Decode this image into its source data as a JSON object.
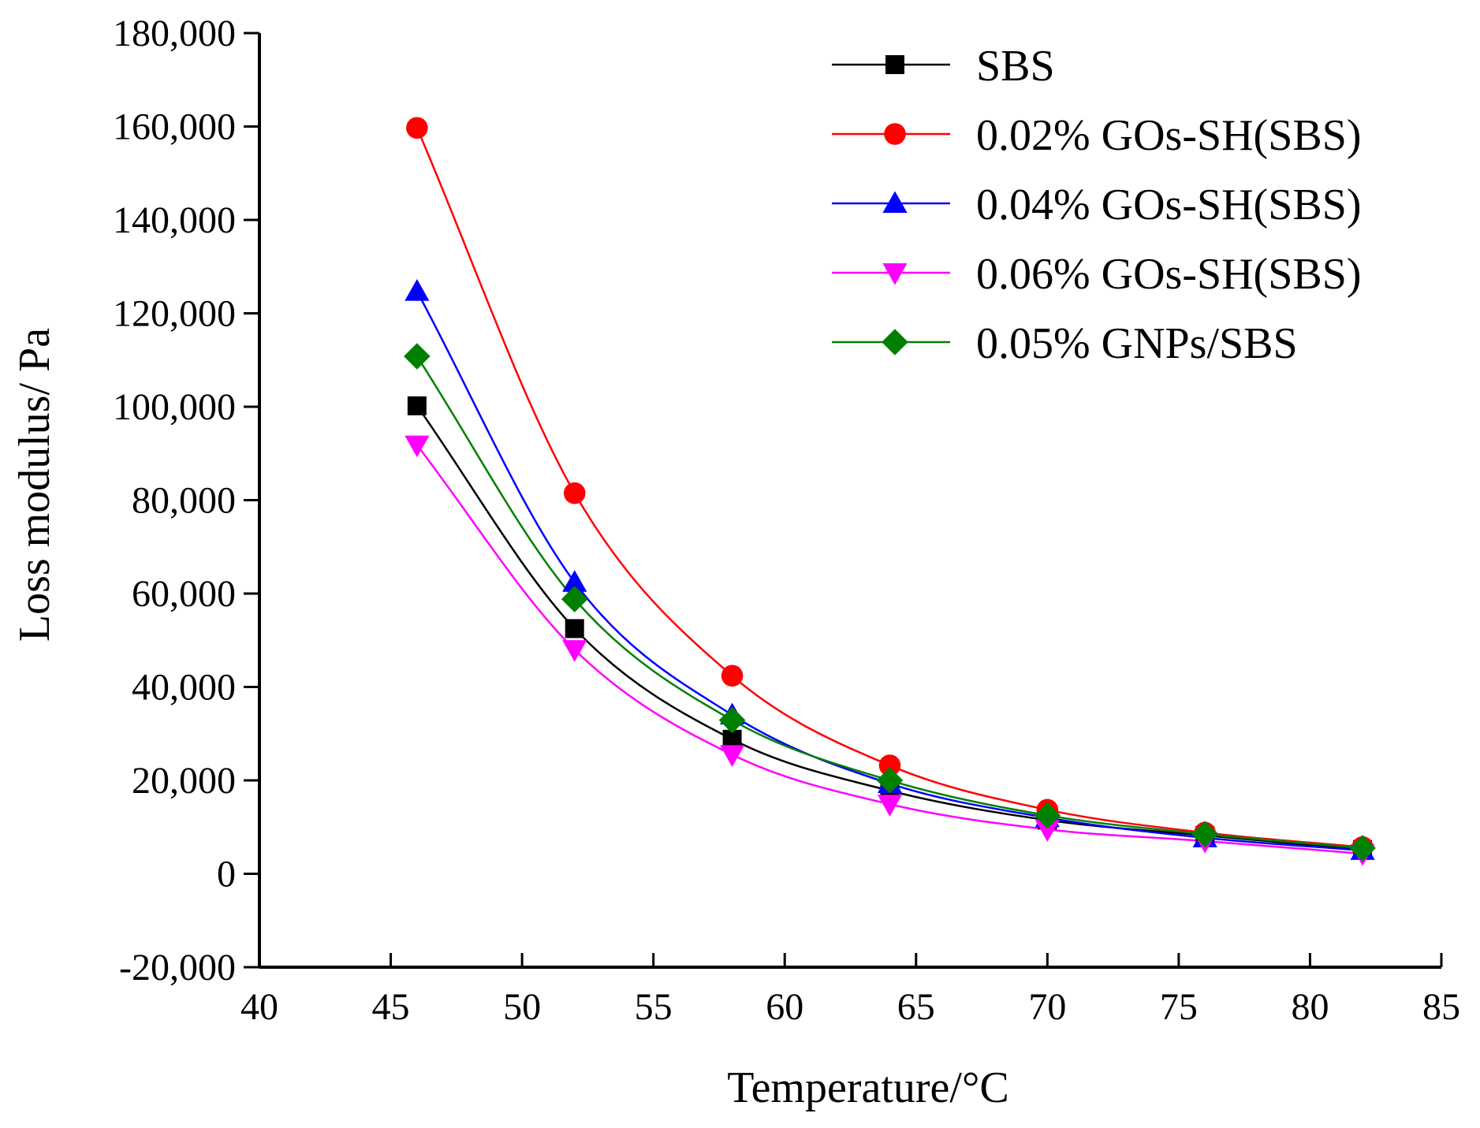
{
  "chart_data": {
    "type": "line",
    "title": "",
    "xlabel": "Temperature/°C",
    "ylabel": "Loss modulus/ Pa",
    "xlim": [
      40,
      85
    ],
    "ylim": [
      -20000,
      180000
    ],
    "x_ticks": [
      40,
      45,
      50,
      55,
      60,
      65,
      70,
      75,
      80,
      85
    ],
    "y_ticks": [
      -20000,
      0,
      20000,
      40000,
      60000,
      80000,
      100000,
      120000,
      140000,
      160000,
      180000
    ],
    "x_tick_labels": [
      "40",
      "45",
      "50",
      "55",
      "60",
      "65",
      "70",
      "75",
      "80",
      "85"
    ],
    "y_tick_labels": [
      "-20,000",
      "0",
      "20,000",
      "40,000",
      "60,000",
      "80,000",
      "100,000",
      "120,000",
      "140,000",
      "160,000",
      "180,000"
    ],
    "legend_position": "top-right",
    "grid": false,
    "x": [
      46,
      52,
      58,
      64,
      70,
      76,
      82
    ],
    "series": [
      {
        "name": "SBS",
        "color": "#000000",
        "marker": "square",
        "values": [
          100200,
          52500,
          28800,
          17800,
          11500,
          8200,
          5200
        ]
      },
      {
        "name": "0.02% GOs-SH(SBS)",
        "color": "#ff0000",
        "marker": "circle",
        "values": [
          159700,
          81500,
          42400,
          23200,
          13700,
          8800,
          5700
        ]
      },
      {
        "name": "0.04% GOs-SH(SBS)",
        "color": "#0000ff",
        "marker": "triangle-up",
        "values": [
          124700,
          62400,
          34000,
          19300,
          12000,
          7700,
          5000
        ]
      },
      {
        "name": "0.06% GOs-SH(SBS)",
        "color": "#ff00ff",
        "marker": "triangle-down",
        "values": [
          91800,
          48000,
          25500,
          14900,
          9500,
          7000,
          4300
        ]
      },
      {
        "name": "0.05% GNPs/SBS",
        "color": "#008000",
        "marker": "diamond",
        "values": [
          110800,
          58800,
          32900,
          20000,
          12500,
          8500,
          5500
        ]
      }
    ]
  }
}
